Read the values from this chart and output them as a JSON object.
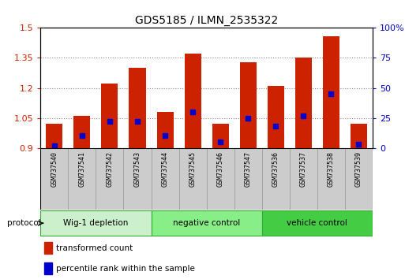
{
  "title": "GDS5185 / ILMN_2535322",
  "samples": [
    "GSM737540",
    "GSM737541",
    "GSM737542",
    "GSM737543",
    "GSM737544",
    "GSM737545",
    "GSM737546",
    "GSM737547",
    "GSM737536",
    "GSM737537",
    "GSM737538",
    "GSM737539"
  ],
  "transformed_count": [
    1.02,
    1.06,
    1.22,
    1.3,
    1.08,
    1.37,
    1.02,
    1.33,
    1.21,
    1.35,
    1.46,
    1.02
  ],
  "percentile_rank": [
    2,
    10,
    22,
    22,
    10,
    30,
    5,
    25,
    18,
    27,
    45,
    3
  ],
  "groups": [
    {
      "label": "Wig-1 depletion",
      "start": 0,
      "end": 4,
      "color": "#ccf0cc"
    },
    {
      "label": "negative control",
      "start": 4,
      "end": 8,
      "color": "#88ee88"
    },
    {
      "label": "vehicle control",
      "start": 8,
      "end": 12,
      "color": "#44cc44"
    }
  ],
  "ylim_left": [
    0.9,
    1.5
  ],
  "yticks_left": [
    0.9,
    1.05,
    1.2,
    1.35,
    1.5
  ],
  "ylim_right": [
    0,
    100
  ],
  "yticks_right": [
    0,
    25,
    50,
    75,
    100
  ],
  "bar_color": "#cc2200",
  "percentile_color": "#0000cc",
  "bar_width": 0.6,
  "grid_color": "#888888",
  "protocol_label": "protocol",
  "legend_items": [
    {
      "label": "transformed count",
      "color": "#cc2200"
    },
    {
      "label": "percentile rank within the sample",
      "color": "#0000cc"
    }
  ]
}
